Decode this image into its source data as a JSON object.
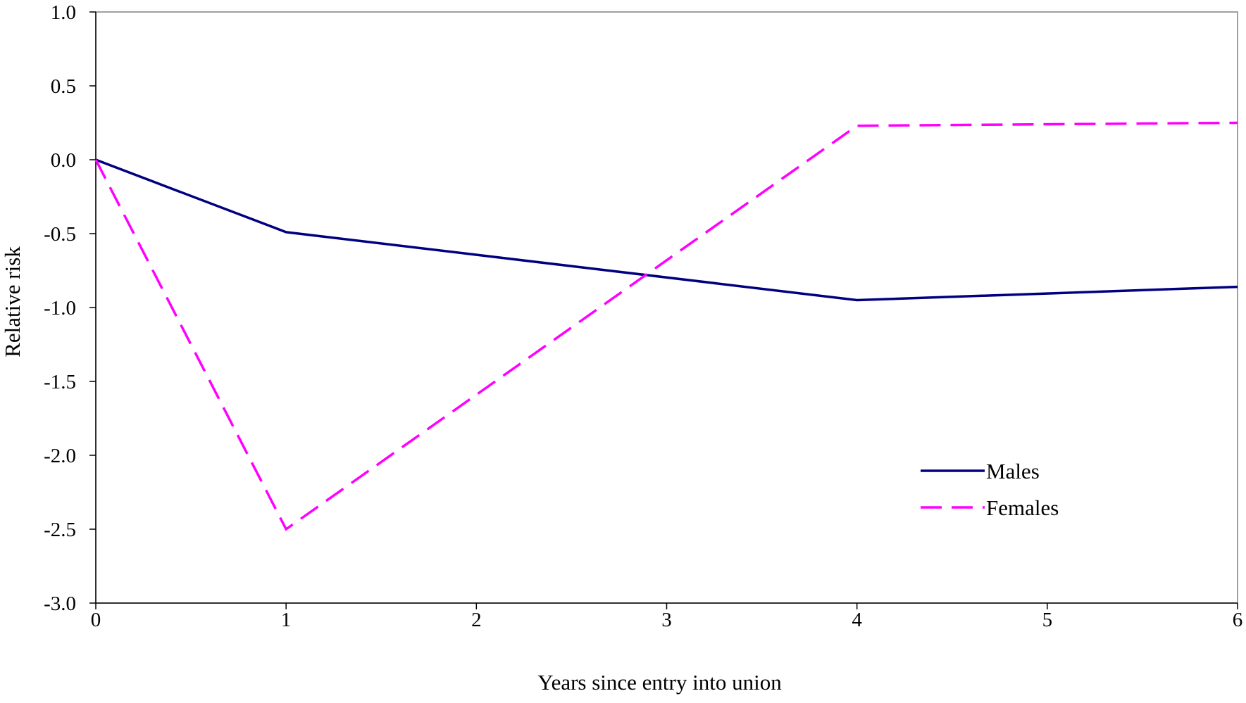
{
  "chart_data": {
    "type": "line",
    "title": "",
    "xlabel": "Years since entry into union",
    "ylabel": "Relative risk",
    "x": [
      0,
      1,
      4,
      6
    ],
    "xlim": [
      0,
      6
    ],
    "ylim": [
      -3.0,
      1.0
    ],
    "x_ticks": [
      "0",
      "1",
      "2",
      "3",
      "4",
      "5",
      "6"
    ],
    "y_ticks": [
      "1.0",
      "0.5",
      "0.0",
      "-0.5",
      "-1.0",
      "-1.5",
      "-2.0",
      "-2.5",
      "-3.0"
    ],
    "grid": false,
    "legend_position": "lower-right",
    "series": [
      {
        "name": "Males",
        "values": [
          0.0,
          -0.49,
          -0.95,
          -0.86
        ],
        "color": "#000080",
        "style": "solid"
      },
      {
        "name": "Females",
        "values": [
          0.0,
          -2.5,
          0.23,
          0.25
        ],
        "color": "#FF00FF",
        "style": "dashed"
      }
    ]
  }
}
